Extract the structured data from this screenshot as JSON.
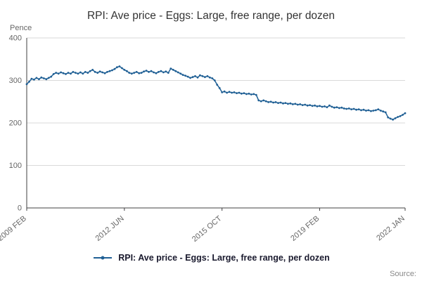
{
  "title": "RPI: Ave price - Eggs: Large, free range, per dozen",
  "y_axis_unit": "Pence",
  "source_label": "Source:",
  "legend": {
    "label": "RPI: Ave price - Eggs: Large, free range, per dozen"
  },
  "colors": {
    "line": "#206095",
    "grid": "#d9d9d9",
    "axis": "#414042",
    "tick_text": "#666666"
  },
  "chart_data": {
    "type": "line",
    "title": "RPI: Ave price - Eggs: Large, free range, per dozen",
    "xlabel": "",
    "ylabel": "Pence",
    "ylim": [
      0,
      400
    ],
    "yticks": [
      0,
      100,
      200,
      300,
      400
    ],
    "xticks": [
      "2009 FEB",
      "2012 JUN",
      "2015 OCT",
      "2019 FEB",
      "2022 JAN"
    ],
    "xtick_positions": [
      0,
      40,
      80,
      120,
      155
    ],
    "x_start": "2009 FEB",
    "frequency": "monthly",
    "grid": "horizontal",
    "legend_position": "bottom",
    "series": [
      {
        "name": "RPI: Ave price - Eggs: Large, free range, per dozen",
        "values": [
          291,
          297,
          304,
          302,
          306,
          303,
          307,
          305,
          303,
          306,
          309,
          315,
          318,
          316,
          319,
          317,
          315,
          318,
          316,
          320,
          318,
          316,
          319,
          316,
          320,
          318,
          322,
          325,
          320,
          318,
          321,
          319,
          317,
          320,
          322,
          324,
          327,
          331,
          333,
          329,
          325,
          322,
          318,
          316,
          318,
          320,
          317,
          318,
          321,
          323,
          320,
          322,
          319,
          317,
          320,
          322,
          319,
          321,
          318,
          328,
          325,
          322,
          319,
          316,
          313,
          311,
          309,
          306,
          308,
          310,
          307,
          312,
          310,
          308,
          310,
          307,
          305,
          300,
          290,
          282,
          272,
          274,
          271,
          273,
          271,
          272,
          270,
          271,
          269,
          270,
          268,
          269,
          267,
          268,
          266,
          253,
          251,
          253,
          251,
          249,
          250,
          248,
          249,
          247,
          248,
          246,
          247,
          245,
          246,
          244,
          245,
          243,
          244,
          242,
          243,
          241,
          242,
          240,
          241,
          239,
          240,
          238,
          239,
          237,
          241,
          238,
          236,
          237,
          235,
          236,
          234,
          233,
          234,
          232,
          233,
          231,
          232,
          230,
          231,
          229,
          230,
          228,
          229,
          230,
          232,
          229,
          227,
          225,
          213,
          210,
          208,
          211,
          214,
          216,
          219,
          223
        ]
      }
    ]
  }
}
